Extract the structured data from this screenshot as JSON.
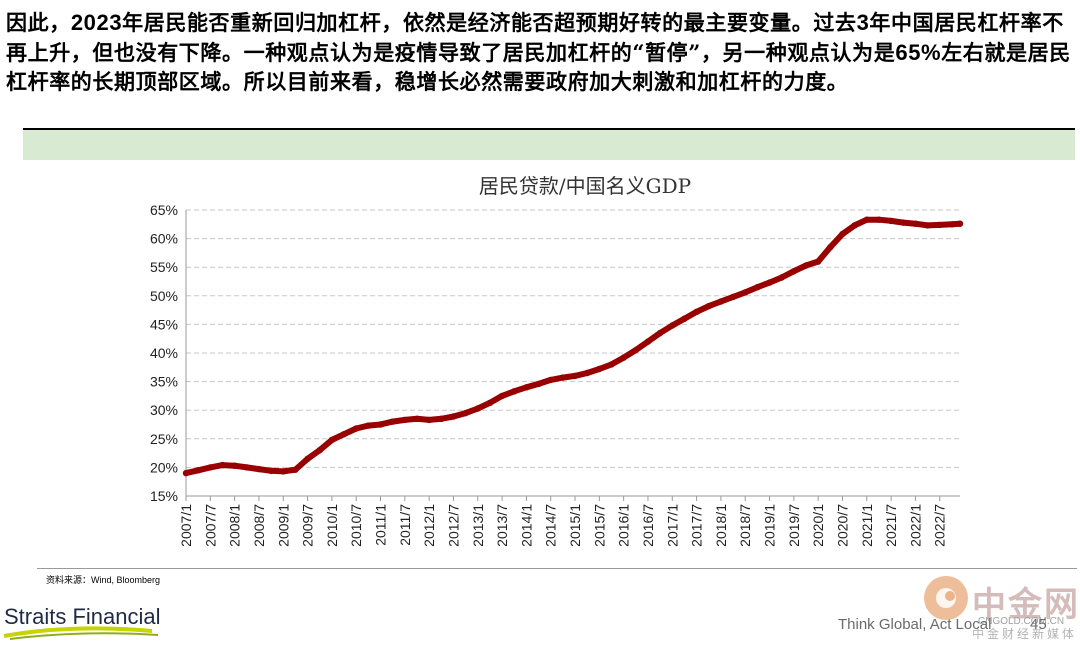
{
  "paragraph": {
    "s1a": "因此，",
    "s1num": "2023",
    "s1b": "年居民能否重新回归加杠杆，依然是经济能否超预期好转的最主要变量。过去",
    "s2num": "3",
    "s2b": "年中国居民杠杆率不再上升，但也没有下降。一种观点认为是疫情导致了居民加杠杆的“暂停”，另一种观点认为是",
    "s3num": "65%",
    "s3b": "左右就是居民杠杆率的长期顶部区域。所以目前来看，稳增长必然需要政府加大刺激和加杠杆的力度。"
  },
  "source_note": "资料来源：Wind, Bloomberg",
  "footer": {
    "brand": "Straits Financial",
    "tagline": "Think Global, Act Local",
    "page_number": "45"
  },
  "watermark": {
    "name": "中金网",
    "url": "CNGOLD.COM.CN",
    "sub": "中金财经新媒体"
  },
  "colors": {
    "series": "#990000",
    "band": "#d9ead3",
    "gridline": "#c8c8c8"
  },
  "chart_data": {
    "type": "line",
    "title": "居民贷款/中国名义GDP",
    "xlabel": "",
    "ylabel": "",
    "ylim": [
      15,
      65
    ],
    "y_unit": "%",
    "yticks": [
      "15%",
      "20%",
      "25%",
      "30%",
      "35%",
      "40%",
      "45%",
      "50%",
      "55%",
      "60%",
      "65%"
    ],
    "xticks": [
      "2007/1",
      "2007/7",
      "2008/1",
      "2008/7",
      "2009/1",
      "2009/7",
      "2010/1",
      "2010/7",
      "2011/1",
      "2011/7",
      "2012/1",
      "2012/7",
      "2013/1",
      "2013/7",
      "2014/1",
      "2014/7",
      "2015/1",
      "2015/7",
      "2016/1",
      "2016/7",
      "2017/1",
      "2017/7",
      "2018/1",
      "2018/7",
      "2019/1",
      "2019/7",
      "2020/1",
      "2020/7",
      "2021/1",
      "2021/7",
      "2022/1",
      "2022/7"
    ],
    "grid": true,
    "legend": "none",
    "series": [
      {
        "points": [
          [
            "2007/1",
            19.0
          ],
          [
            "2007/4",
            19.5
          ],
          [
            "2007/7",
            20.0
          ],
          [
            "2007/10",
            20.4
          ],
          [
            "2008/1",
            20.3
          ],
          [
            "2008/4",
            20.0
          ],
          [
            "2008/7",
            19.7
          ],
          [
            "2008/10",
            19.4
          ],
          [
            "2009/1",
            19.3
          ],
          [
            "2009/4",
            19.6
          ],
          [
            "2009/7",
            21.5
          ],
          [
            "2009/10",
            23.0
          ],
          [
            "2010/1",
            24.8
          ],
          [
            "2010/4",
            25.8
          ],
          [
            "2010/7",
            26.8
          ],
          [
            "2010/10",
            27.3
          ],
          [
            "2011/1",
            27.5
          ],
          [
            "2011/4",
            28.0
          ],
          [
            "2011/7",
            28.3
          ],
          [
            "2011/10",
            28.5
          ],
          [
            "2012/1",
            28.3
          ],
          [
            "2012/4",
            28.5
          ],
          [
            "2012/7",
            28.9
          ],
          [
            "2012/10",
            29.5
          ],
          [
            "2013/1",
            30.3
          ],
          [
            "2013/4",
            31.3
          ],
          [
            "2013/7",
            32.5
          ],
          [
            "2013/10",
            33.3
          ],
          [
            "2014/1",
            34.0
          ],
          [
            "2014/4",
            34.6
          ],
          [
            "2014/7",
            35.3
          ],
          [
            "2014/10",
            35.7
          ],
          [
            "2015/1",
            36.0
          ],
          [
            "2015/4",
            36.5
          ],
          [
            "2015/7",
            37.2
          ],
          [
            "2015/10",
            38.0
          ],
          [
            "2016/1",
            39.2
          ],
          [
            "2016/4",
            40.5
          ],
          [
            "2016/7",
            42.0
          ],
          [
            "2016/10",
            43.5
          ],
          [
            "2017/1",
            44.8
          ],
          [
            "2017/4",
            46.0
          ],
          [
            "2017/7",
            47.2
          ],
          [
            "2017/10",
            48.2
          ],
          [
            "2018/1",
            49.0
          ],
          [
            "2018/4",
            49.8
          ],
          [
            "2018/7",
            50.6
          ],
          [
            "2018/10",
            51.5
          ],
          [
            "2019/1",
            52.3
          ],
          [
            "2019/4",
            53.2
          ],
          [
            "2019/7",
            54.3
          ],
          [
            "2019/10",
            55.3
          ],
          [
            "2020/1",
            56.0
          ],
          [
            "2020/4",
            58.5
          ],
          [
            "2020/7",
            60.8
          ],
          [
            "2020/10",
            62.3
          ],
          [
            "2021/1",
            63.3
          ],
          [
            "2021/4",
            63.3
          ],
          [
            "2021/7",
            63.1
          ],
          [
            "2021/10",
            62.8
          ],
          [
            "2022/1",
            62.6
          ],
          [
            "2022/4",
            62.3
          ],
          [
            "2022/7",
            62.4
          ],
          [
            "2022/10",
            62.5
          ],
          [
            "2022/12",
            62.6
          ]
        ]
      }
    ]
  }
}
